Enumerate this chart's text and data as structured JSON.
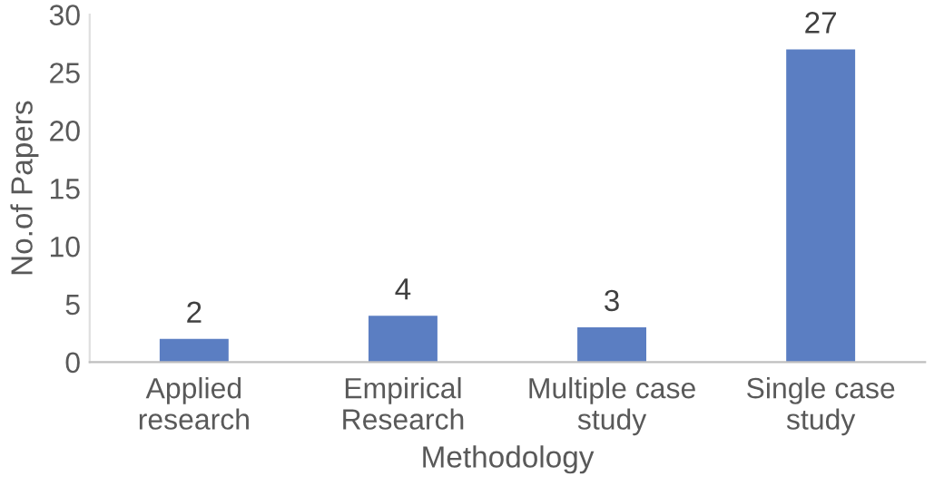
{
  "chart_data": {
    "type": "bar",
    "xlabel": "Methodology",
    "ylabel": "No.of Papers",
    "categories": [
      "Applied\nresearch",
      "Empirical\nResearch",
      "Multiple case\nstudy",
      "Single case\nstudy"
    ],
    "values": [
      2,
      4,
      3,
      27
    ],
    "color": "#5b7ec2",
    "data_labels": true,
    "ylim": [
      0,
      30
    ],
    "yticks": [
      0,
      5,
      10,
      15,
      20,
      25,
      30
    ],
    "grid": false,
    "legend": false
  }
}
